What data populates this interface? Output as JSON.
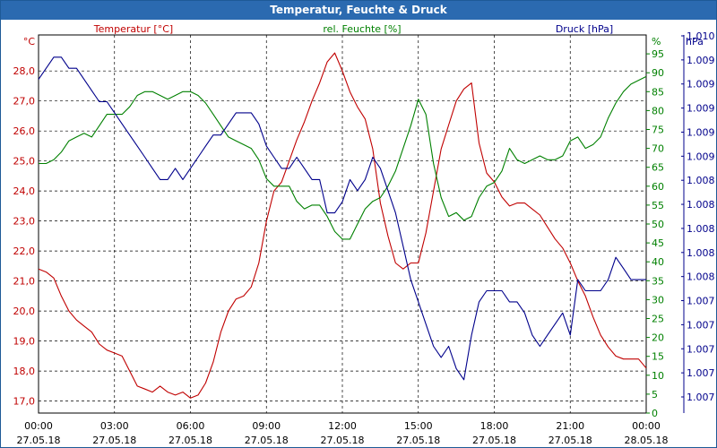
{
  "window": {
    "title": "Temperatur, Feuchte & Druck"
  },
  "chart_data": {
    "type": "line",
    "title": "Temperatur, Feuchte & Druck",
    "x_ticks": [
      {
        "time": "00:00",
        "date": "27.05.18"
      },
      {
        "time": "03:00",
        "date": "27.05.18"
      },
      {
        "time": "06:00",
        "date": "27.05.18"
      },
      {
        "time": "09:00",
        "date": "27.05.18"
      },
      {
        "time": "12:00",
        "date": "27.05.18"
      },
      {
        "time": "15:00",
        "date": "27.05.18"
      },
      {
        "time": "18:00",
        "date": "27.05.18"
      },
      {
        "time": "21:00",
        "date": "27.05.18"
      },
      {
        "time": "00:00",
        "date": "28.05.18"
      }
    ],
    "xlim_hours": [
      0,
      24
    ],
    "axes": {
      "temperature": {
        "label": "Temperatur [°C]",
        "unit": "°C",
        "color": "#c00000",
        "ylim": [
          16.6,
          29.2
        ],
        "ticks": [
          "17,0",
          "18,0",
          "19,0",
          "20,0",
          "21,0",
          "22,0",
          "23,0",
          "24,0",
          "25,0",
          "26,0",
          "27,0",
          "28,0"
        ]
      },
      "humidity": {
        "label": "rel. Feuchte [%]",
        "unit": "%",
        "color": "#008000",
        "ylim": [
          0,
          100
        ],
        "ticks": [
          "0",
          "5",
          "10",
          "15",
          "20",
          "25",
          "30",
          "35",
          "40",
          "45",
          "50",
          "55",
          "60",
          "65",
          "70",
          "75",
          "80",
          "85",
          "90",
          "95"
        ]
      },
      "pressure": {
        "label": "Druck [hPa]",
        "unit": "hPa",
        "color": "#00008b",
        "ylim": [
          1006.8,
          1010.2
        ],
        "ticks": [
          "1.007",
          "1.007",
          "1.007",
          "1.007",
          "1.007",
          "1.008",
          "1.008",
          "1.008",
          "1.008",
          "1.008",
          "1.009",
          "1.009",
          "1.009",
          "1.009",
          "1.009",
          "1.010"
        ]
      }
    },
    "series": [
      {
        "name": "Temperatur",
        "axis": "temperature",
        "color": "#c00000",
        "x": [
          0,
          0.3,
          0.6,
          0.9,
          1.2,
          1.5,
          1.8,
          2.1,
          2.4,
          2.7,
          3.0,
          3.3,
          3.6,
          3.9,
          4.2,
          4.5,
          4.8,
          5.1,
          5.4,
          5.7,
          6.0,
          6.3,
          6.6,
          6.9,
          7.2,
          7.5,
          7.8,
          8.1,
          8.4,
          8.7,
          9.0,
          9.3,
          9.6,
          9.9,
          10.2,
          10.5,
          10.8,
          11.1,
          11.4,
          11.7,
          12.0,
          12.3,
          12.6,
          12.9,
          13.2,
          13.5,
          13.8,
          14.1,
          14.4,
          14.7,
          15.0,
          15.3,
          15.6,
          15.9,
          16.2,
          16.5,
          16.8,
          17.1,
          17.4,
          17.7,
          18.0,
          18.3,
          18.6,
          18.9,
          19.2,
          19.5,
          19.8,
          20.1,
          20.4,
          20.7,
          21.0,
          21.3,
          21.6,
          21.9,
          22.2,
          22.5,
          22.8,
          23.1,
          23.4,
          23.7,
          24.0
        ],
        "values": [
          21.4,
          21.3,
          21.1,
          20.5,
          20.0,
          19.7,
          19.5,
          19.3,
          18.9,
          18.7,
          18.6,
          18.5,
          18.0,
          17.5,
          17.4,
          17.3,
          17.5,
          17.3,
          17.2,
          17.3,
          17.1,
          17.2,
          17.6,
          18.3,
          19.3,
          20.0,
          20.4,
          20.5,
          20.8,
          21.6,
          23.0,
          24.0,
          24.3,
          25.0,
          25.7,
          26.3,
          27.0,
          27.6,
          28.3,
          28.6,
          28.0,
          27.3,
          26.8,
          26.4,
          25.4,
          23.6,
          22.5,
          21.6,
          21.4,
          21.6,
          21.6,
          22.6,
          24.0,
          25.4,
          26.2,
          27.0,
          27.4,
          27.6,
          25.6,
          24.6,
          24.3,
          23.8,
          23.5,
          23.6,
          23.6,
          23.4,
          23.2,
          22.8,
          22.4,
          22.1,
          21.6,
          21.0,
          20.5,
          19.8,
          19.2,
          18.8,
          18.5,
          18.4,
          18.4,
          18.4,
          18.1
        ]
      },
      {
        "name": "rel. Feuchte",
        "axis": "humidity",
        "color": "#008000",
        "x": [
          0,
          0.3,
          0.6,
          0.9,
          1.2,
          1.5,
          1.8,
          2.1,
          2.4,
          2.7,
          3.0,
          3.3,
          3.6,
          3.9,
          4.2,
          4.5,
          4.8,
          5.1,
          5.4,
          5.7,
          6.0,
          6.3,
          6.6,
          6.9,
          7.2,
          7.5,
          7.8,
          8.1,
          8.4,
          8.7,
          9.0,
          9.3,
          9.6,
          9.9,
          10.2,
          10.5,
          10.8,
          11.1,
          11.4,
          11.7,
          12.0,
          12.3,
          12.6,
          12.9,
          13.2,
          13.5,
          13.8,
          14.1,
          14.4,
          14.7,
          15.0,
          15.3,
          15.6,
          15.9,
          16.2,
          16.5,
          16.8,
          17.1,
          17.4,
          17.7,
          18.0,
          18.3,
          18.6,
          18.9,
          19.2,
          19.5,
          19.8,
          20.1,
          20.4,
          20.7,
          21.0,
          21.3,
          21.6,
          21.9,
          22.2,
          22.5,
          22.8,
          23.1,
          23.4,
          23.7,
          24.0
        ],
        "values": [
          66,
          66,
          67,
          69,
          72,
          73,
          74,
          73,
          76,
          79,
          79,
          79,
          81,
          84,
          85,
          85,
          84,
          83,
          84,
          85,
          85,
          84,
          82,
          79,
          76,
          73,
          72,
          71,
          70,
          67,
          62,
          60,
          60,
          60,
          56,
          54,
          55,
          55,
          52,
          48,
          46,
          46,
          50,
          54,
          56,
          57,
          60,
          64,
          70,
          76,
          83,
          79,
          66,
          57,
          52,
          53,
          51,
          52,
          57,
          60,
          61,
          64,
          70,
          67,
          66,
          67,
          68,
          67,
          67,
          68,
          72,
          73,
          70,
          71,
          73,
          78,
          82,
          85,
          87,
          88,
          89
        ]
      },
      {
        "name": "Druck",
        "axis": "pressure",
        "color": "#00008b",
        "x": [
          0,
          0.3,
          0.6,
          0.9,
          1.2,
          1.5,
          1.8,
          2.1,
          2.4,
          2.7,
          3.0,
          3.3,
          3.6,
          3.9,
          4.2,
          4.5,
          4.8,
          5.1,
          5.4,
          5.7,
          6.0,
          6.3,
          6.6,
          6.9,
          7.2,
          7.5,
          7.8,
          8.1,
          8.4,
          8.7,
          9.0,
          9.3,
          9.6,
          9.9,
          10.2,
          10.5,
          10.8,
          11.1,
          11.4,
          11.7,
          12.0,
          12.3,
          12.6,
          12.9,
          13.2,
          13.5,
          13.8,
          14.1,
          14.4,
          14.7,
          15.0,
          15.3,
          15.6,
          15.9,
          16.2,
          16.5,
          16.8,
          17.1,
          17.4,
          17.7,
          18.0,
          18.3,
          18.6,
          18.9,
          19.2,
          19.5,
          19.8,
          20.1,
          20.4,
          20.7,
          21.0,
          21.3,
          21.6,
          21.9,
          22.2,
          22.5,
          22.8,
          23.1,
          23.4,
          23.7,
          24.0
        ],
        "values": [
          1009.8,
          1009.9,
          1010.0,
          1010.0,
          1009.9,
          1009.9,
          1009.8,
          1009.7,
          1009.6,
          1009.6,
          1009.5,
          1009.4,
          1009.3,
          1009.2,
          1009.1,
          1009.0,
          1008.9,
          1008.9,
          1009.0,
          1008.9,
          1009.0,
          1009.1,
          1009.2,
          1009.3,
          1009.3,
          1009.4,
          1009.5,
          1009.5,
          1009.5,
          1009.4,
          1009.2,
          1009.1,
          1009.0,
          1009.0,
          1009.1,
          1009.0,
          1008.9,
          1008.9,
          1008.6,
          1008.6,
          1008.7,
          1008.9,
          1008.8,
          1008.9,
          1009.1,
          1009.0,
          1008.8,
          1008.6,
          1008.3,
          1008.0,
          1007.8,
          1007.6,
          1007.4,
          1007.3,
          1007.4,
          1007.2,
          1007.1,
          1007.5,
          1007.8,
          1007.9,
          1007.9,
          1007.9,
          1007.8,
          1007.8,
          1007.7,
          1007.5,
          1007.4,
          1007.5,
          1007.6,
          1007.7,
          1007.5,
          1008.0,
          1007.9,
          1007.9,
          1007.9,
          1008.0,
          1008.2,
          1008.1,
          1008.0,
          1008.0,
          1008.0
        ]
      }
    ]
  }
}
